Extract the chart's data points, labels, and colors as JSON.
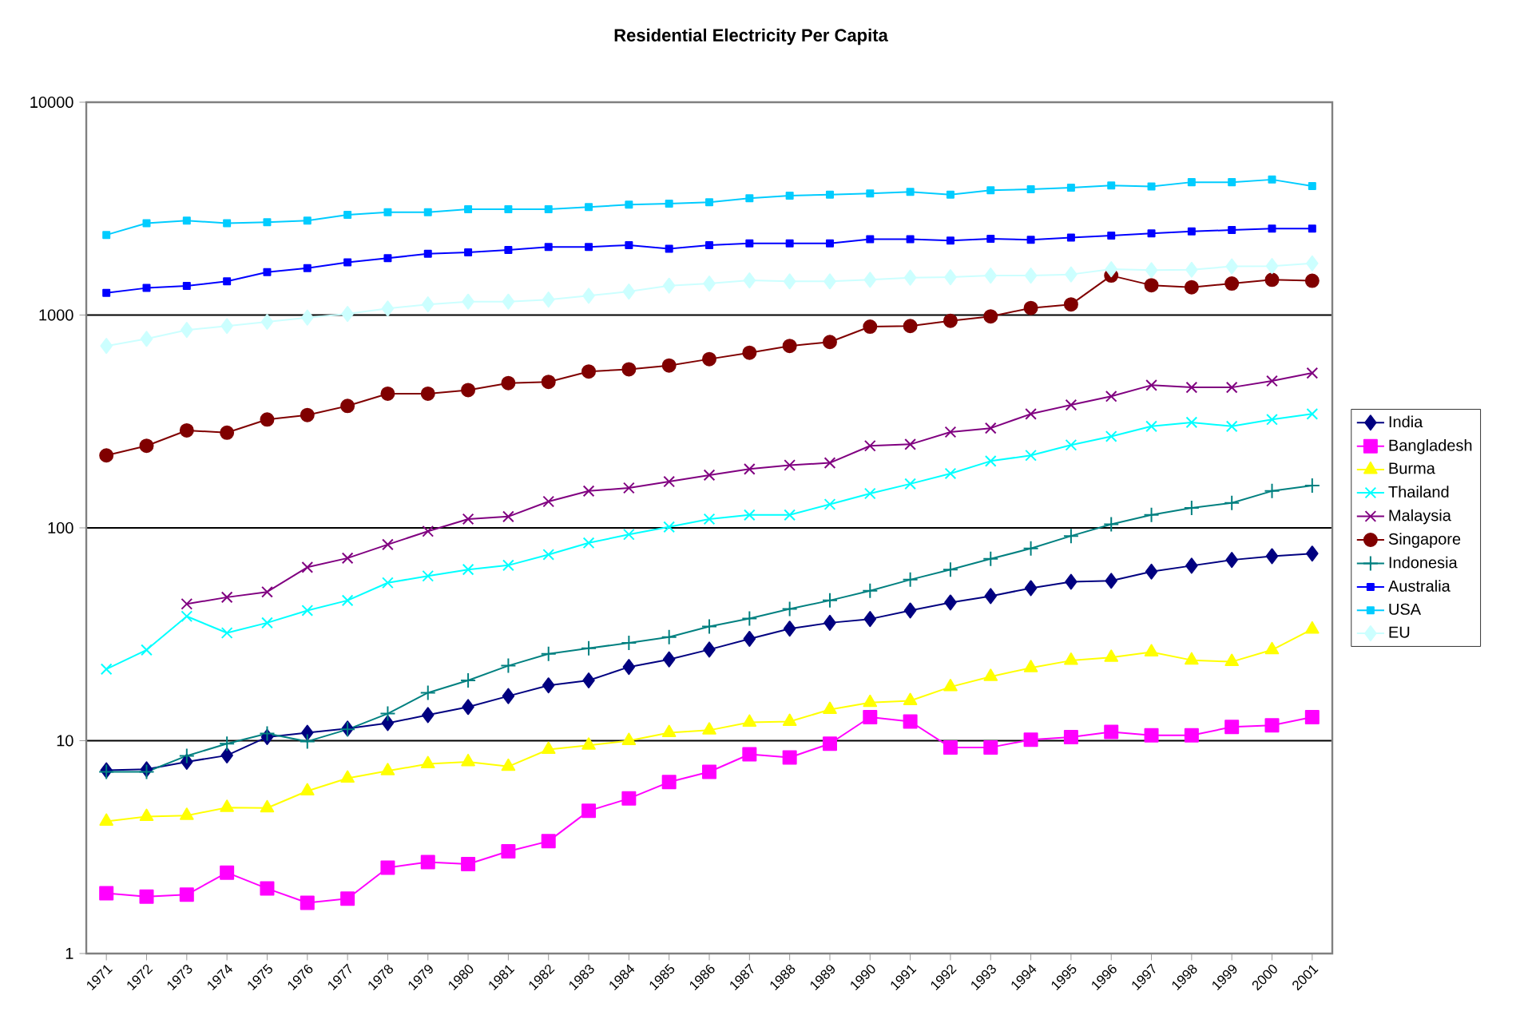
{
  "chart_data": {
    "type": "line",
    "title": "Residential Electricity Per Capita",
    "categories": [
      "1971",
      "1972",
      "1973",
      "1974",
      "1975",
      "1976",
      "1977",
      "1978",
      "1979",
      "1980",
      "1981",
      "1982",
      "1983",
      "1984",
      "1985",
      "1986",
      "1987",
      "1988",
      "1989",
      "1990",
      "1991",
      "1992",
      "1993",
      "1994",
      "1995",
      "1996",
      "1997",
      "1998",
      "1999",
      "2000",
      "2001"
    ],
    "log": true,
    "ylim": [
      1,
      10000
    ],
    "yticks": [
      1,
      10,
      100,
      1000,
      10000
    ],
    "grid": "y",
    "legend": "right",
    "line_style": "solid",
    "series": [
      {
        "name": "India",
        "color": "#000080",
        "marker": "diamond",
        "values": [
          7.26,
          7.34,
          7.96,
          8.53,
          10.4,
          10.9,
          11.4,
          12.1,
          13.2,
          14.4,
          16.2,
          18.2,
          19.2,
          22.2,
          24.1,
          26.8,
          30.1,
          33.6,
          35.8,
          37.3,
          40.9,
          44.6,
          47.8,
          52.1,
          55.8,
          56.4,
          62.3,
          66.4,
          70.7,
          73.6,
          75.7
        ]
      },
      {
        "name": "Bangladesh",
        "color": "#ff00ff",
        "marker": "square",
        "values": [
          1.92,
          1.85,
          1.89,
          2.4,
          2.02,
          1.73,
          1.81,
          2.53,
          2.69,
          2.63,
          3.02,
          3.37,
          4.68,
          5.35,
          6.39,
          7.14,
          8.63,
          8.34,
          9.68,
          12.9,
          12.3,
          9.3,
          9.3,
          10.1,
          10.4,
          11.0,
          10.6,
          10.6,
          11.6,
          11.8,
          12.9
        ]
      },
      {
        "name": "Burma",
        "color": "#ffff00",
        "marker": "triangle",
        "values": [
          4.18,
          4.4,
          4.45,
          4.85,
          4.83,
          5.8,
          6.66,
          7.21,
          7.78,
          7.96,
          7.56,
          9.09,
          9.51,
          10.0,
          10.9,
          11.2,
          12.2,
          12.3,
          14.0,
          15.1,
          15.4,
          17.9,
          20.0,
          22.0,
          23.8,
          24.6,
          26.1,
          23.9,
          23.5,
          26.7,
          33.4
        ]
      },
      {
        "name": "Thailand",
        "color": "#00ffff",
        "marker": "cross",
        "values": [
          21.7,
          26.7,
          38.4,
          32.1,
          35.8,
          40.9,
          45.6,
          55.2,
          59.4,
          63.7,
          66.7,
          74.9,
          85.0,
          93.1,
          101,
          110,
          115,
          115,
          129,
          145,
          161,
          180,
          206,
          219,
          245,
          269,
          300,
          313,
          300,
          323,
          343
        ]
      },
      {
        "name": "Malaysia",
        "color": "#800080",
        "marker": "cross",
        "values": [
          null,
          null,
          43.9,
          47.2,
          50.0,
          65.3,
          72.1,
          83.5,
          96.4,
          110,
          113,
          133,
          149,
          154,
          165,
          177,
          189,
          197,
          202,
          243,
          247,
          282,
          294,
          343,
          378,
          415,
          468,
          457,
          457,
          490,
          534
        ]
      },
      {
        "name": "Singapore",
        "color": "#800000",
        "marker": "circle",
        "values": [
          219,
          243,
          287,
          280,
          323,
          339,
          374,
          427,
          427,
          444,
          479,
          485,
          543,
          556,
          579,
          621,
          665,
          716,
          747,
          882,
          888,
          940,
          985,
          1079,
          1122,
          1532,
          1381,
          1351,
          1406,
          1465,
          1449
        ]
      },
      {
        "name": "Indonesia",
        "color": "#008080",
        "marker": "plus",
        "values": [
          7.14,
          7.14,
          8.49,
          9.68,
          10.8,
          9.92,
          11.3,
          13.4,
          16.8,
          19.2,
          22.5,
          25.6,
          27.2,
          28.8,
          30.7,
          34.4,
          37.5,
          41.6,
          45.6,
          50.6,
          57.1,
          63.7,
          71.5,
          80.0,
          91.6,
          104,
          115,
          124,
          131,
          149,
          158
        ]
      },
      {
        "name": "Australia",
        "color": "#0000ff",
        "marker": "square",
        "values": [
          1270,
          1340,
          1370,
          1440,
          1590,
          1660,
          1770,
          1850,
          1940,
          1970,
          2020,
          2090,
          2090,
          2130,
          2050,
          2130,
          2170,
          2170,
          2170,
          2270,
          2270,
          2240,
          2280,
          2260,
          2310,
          2360,
          2420,
          2470,
          2510,
          2550,
          2550
        ]
      },
      {
        "name": "USA",
        "color": "#00ccff",
        "marker": "square",
        "values": [
          2380,
          2700,
          2780,
          2700,
          2730,
          2780,
          2960,
          3040,
          3040,
          3140,
          3140,
          3140,
          3220,
          3300,
          3340,
          3390,
          3540,
          3640,
          3680,
          3730,
          3790,
          3680,
          3860,
          3900,
          3970,
          4060,
          4020,
          4210,
          4210,
          4330,
          4040
        ]
      },
      {
        "name": "EU",
        "color": "#ccffff",
        "marker": "diamond",
        "values": [
          716,
          773,
          851,
          888,
          929,
          973,
          1012,
          1073,
          1122,
          1156,
          1156,
          1182,
          1232,
          1289,
          1374,
          1406,
          1455,
          1440,
          1440,
          1465,
          1499,
          1506,
          1532,
          1532,
          1552,
          1642,
          1625,
          1633,
          1692,
          1699,
          1750
        ]
      }
    ]
  }
}
